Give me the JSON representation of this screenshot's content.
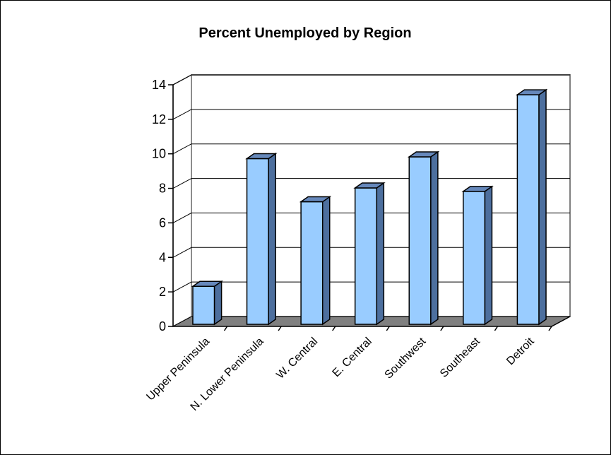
{
  "chart_data": {
    "type": "bar",
    "title": "Percent Unemployed by Region",
    "xlabel": "",
    "ylabel": "",
    "categories": [
      "Upper Peninsula",
      "N. Lower Peninsula",
      "W. Central",
      "E. Central",
      "Southwest",
      "Southeast",
      "Detroit"
    ],
    "values": [
      2.2,
      9.6,
      7.1,
      7.9,
      9.7,
      7.7,
      13.3
    ],
    "ylim": [
      0,
      14
    ],
    "yticks": [
      "0",
      "2",
      "4",
      "6",
      "8",
      "10",
      "12",
      "14"
    ],
    "grid": true,
    "legend": "none",
    "style": "3d-column",
    "colors": {
      "bar_front": "#99ccff",
      "bar_side": "#4d6f9e",
      "bar_top": "#6688bb",
      "floor": "#808080",
      "back_wall": "#ffffff",
      "gridline": "#000000"
    }
  }
}
